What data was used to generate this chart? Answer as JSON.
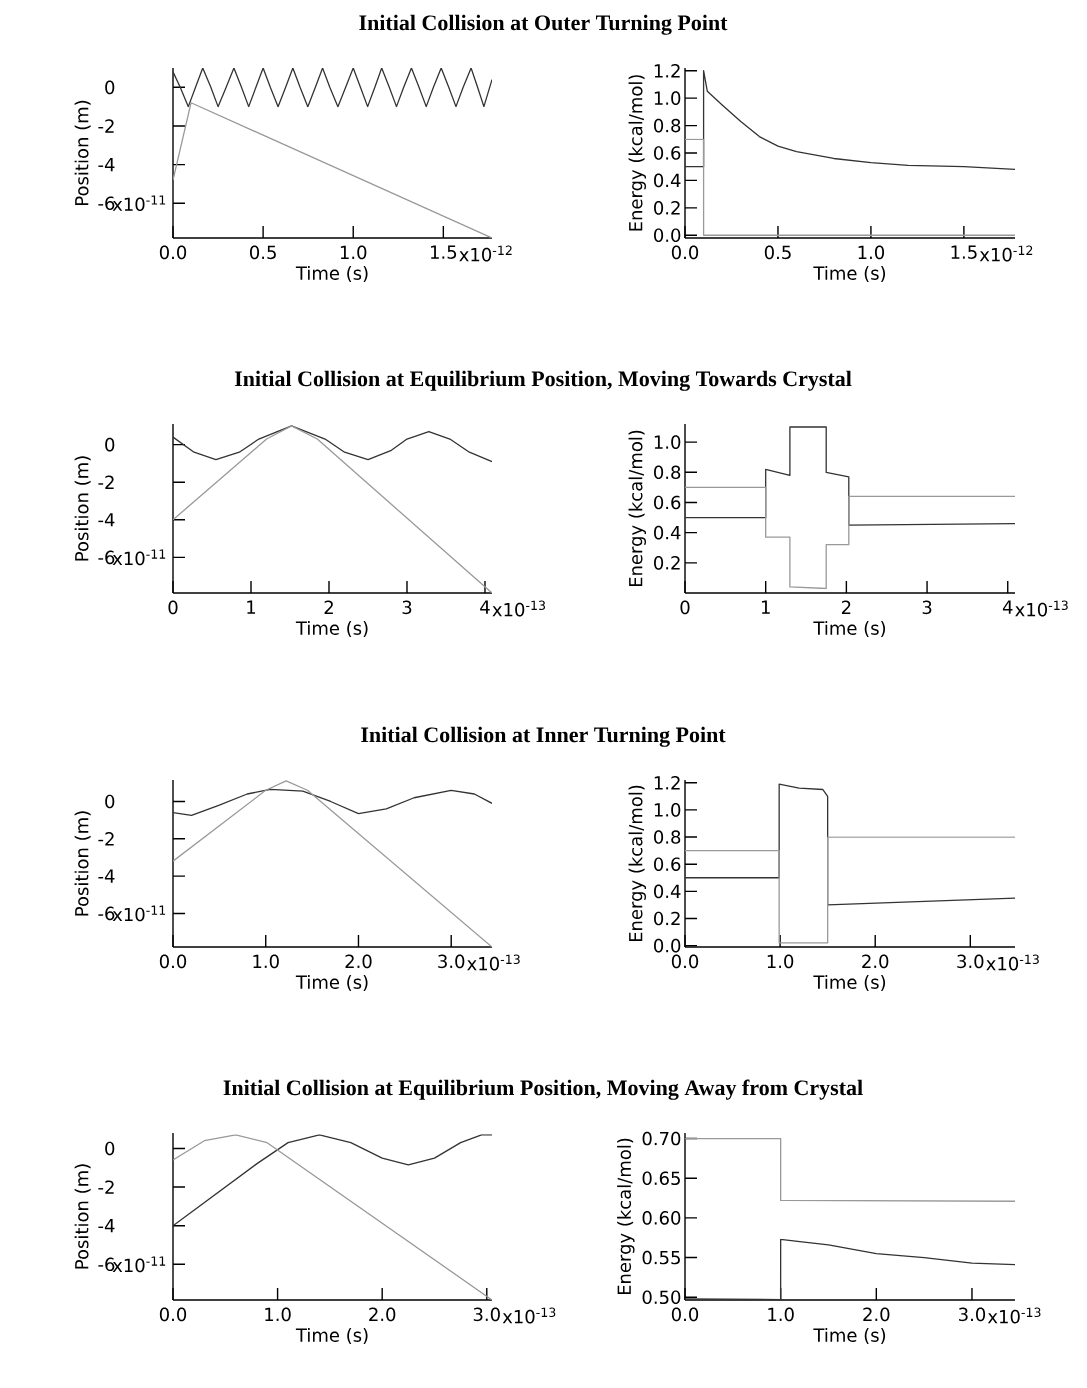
{
  "chart_data": [
    {
      "type": "line",
      "title": "Initial Collision at Outer Turning Point",
      "xlabel": "Time (s)",
      "ylabel": "Position (m)",
      "xlim": [
        0,
        1.77
      ],
      "ylim": [
        -7.8,
        1.0
      ],
      "annotations": [
        "x10$^{-12}$",
        "x10$^{-11}$"
      ],
      "xticks": [
        {
          "value": 0,
          "label": "0.0"
        },
        0.5,
        {
          "value": 1,
          "label": "1.0"
        },
        1.5
      ],
      "yticks": [
        0,
        -2,
        -4,
        -6
      ],
      "series": [
        {
          "color": "#333333",
          "x": [
            0,
            0.04,
            0.085,
            0.125,
            0.165,
            0.21,
            0.25,
            0.295,
            0.338,
            0.38,
            0.42,
            0.46,
            0.5,
            0.54,
            0.583,
            0.625,
            0.665,
            0.705,
            0.748,
            0.79,
            0.83,
            0.87,
            0.915,
            0.958,
            1.0,
            1.04,
            1.08,
            1.12,
            1.158,
            1.2,
            1.24,
            1.28,
            1.323,
            1.365,
            1.405,
            1.445,
            1.488,
            1.53,
            1.57,
            1.61,
            1.654,
            1.69,
            1.725,
            1.77
          ],
          "values": [
            0.8,
            0,
            -1.0,
            0,
            1.0,
            0,
            -1.0,
            0,
            1.0,
            0,
            -1.0,
            0,
            1.0,
            0,
            -1.0,
            0,
            1.0,
            0,
            -1.0,
            0,
            1.0,
            0,
            -1.0,
            0,
            1.0,
            0,
            -1.0,
            0,
            1.0,
            0,
            -1.0,
            0,
            1.0,
            0,
            -1.0,
            0,
            1.0,
            0,
            -1.0,
            0,
            1.0,
            0,
            -1.0,
            0.4
          ]
        },
        {
          "color": "#999999",
          "x": [
            0,
            0.1,
            1.77
          ],
          "values": [
            -4.8,
            -0.8,
            -7.8
          ]
        }
      ]
    },
    {
      "type": "line",
      "xlabel": "Time (s)",
      "ylabel": "Energy (kcal/mol)",
      "xlim": [
        0,
        1.775
      ],
      "ylim": [
        -0.02,
        1.22
      ],
      "annotations": [
        "x10$^{-12}$"
      ],
      "xticks": [
        {
          "value": 0,
          "label": "0.0"
        },
        0.5,
        {
          "value": 1,
          "label": "1.0"
        },
        1.5
      ],
      "yticks": [
        {
          "value": 0,
          "label": "0.0"
        },
        0.2,
        0.4,
        0.6,
        0.8,
        {
          "value": 1.0,
          "label": "1.0"
        },
        1.2
      ],
      "series": [
        {
          "color": "#333333",
          "x": [
            0,
            0.1,
            0.1,
            0.12,
            0.2,
            0.3,
            0.4,
            0.5,
            0.6,
            0.8,
            1.0,
            1.2,
            1.5,
            1.775
          ],
          "values": [
            0.5,
            0.5,
            1.2,
            1.05,
            0.95,
            0.83,
            0.72,
            0.65,
            0.61,
            0.56,
            0.53,
            0.51,
            0.5,
            0.48
          ]
        },
        {
          "color": "#999999",
          "x": [
            0,
            0.1,
            0.1,
            1.775
          ],
          "values": [
            0.7,
            0.7,
            0.0,
            0.0
          ]
        }
      ]
    },
    {
      "type": "line",
      "title": "Initial Collision at Equilibrium Position, Moving Towards Crystal",
      "xlabel": "Time (s)",
      "ylabel": "Position (m)",
      "xlim": [
        0,
        4.09
      ],
      "ylim": [
        -7.9,
        1.1
      ],
      "annotations": [
        "x10$^{-13}$",
        "x10$^{-11}$"
      ],
      "xticks": [
        0,
        1,
        2,
        3,
        4
      ],
      "yticks": [
        0,
        -2,
        -4,
        -6
      ],
      "series": [
        {
          "color": "#333333",
          "x": [
            0,
            0.27,
            0.55,
            0.85,
            1.1,
            1.52,
            1.95,
            2.2,
            2.5,
            2.8,
            3.0,
            3.28,
            3.55,
            3.8,
            4.09
          ],
          "values": [
            0.4,
            -0.4,
            -0.8,
            -0.4,
            0.3,
            1.0,
            0.3,
            -0.4,
            -0.8,
            -0.3,
            0.3,
            0.7,
            0.3,
            -0.4,
            -0.9
          ]
        },
        {
          "color": "#999999",
          "x": [
            0,
            1.2,
            1.52,
            1.85,
            4.09
          ],
          "values": [
            -4.0,
            0.3,
            1.0,
            0.3,
            -7.9
          ]
        }
      ]
    },
    {
      "type": "line",
      "xlabel": "Time (s)",
      "ylabel": "Energy (kcal/mol)",
      "xlim": [
        0,
        4.09
      ],
      "ylim": [
        0,
        1.12
      ],
      "annotations": [
        "x10$^{-13}$"
      ],
      "xticks": [
        0,
        1,
        2,
        3,
        4
      ],
      "yticks": [
        0.2,
        0.4,
        0.6,
        0.8,
        {
          "value": 1.0,
          "label": "1.0"
        }
      ],
      "series": [
        {
          "color": "#333333",
          "x": [
            0,
            1.0,
            1.0,
            1.3,
            1.3,
            1.75,
            1.75,
            2.03,
            2.03,
            4.09
          ],
          "values": [
            0.5,
            0.5,
            0.82,
            0.78,
            1.1,
            1.1,
            0.8,
            0.77,
            0.45,
            0.46
          ]
        },
        {
          "color": "#999999",
          "x": [
            0,
            1.0,
            1.0,
            1.3,
            1.3,
            1.75,
            1.75,
            2.03,
            2.03,
            4.09
          ],
          "values": [
            0.7,
            0.7,
            0.37,
            0.37,
            0.04,
            0.03,
            0.32,
            0.32,
            0.64,
            0.64
          ]
        }
      ]
    },
    {
      "type": "line",
      "title": "Initial Collision at Inner Turning Point",
      "xlabel": "Time (s)",
      "ylabel": "Position (m)",
      "xlim": [
        0,
        3.44
      ],
      "ylim": [
        -7.8,
        1.15
      ],
      "annotations": [
        "x10$^{-13}$",
        "x10$^{-11}$"
      ],
      "xticks": [
        {
          "value": 0,
          "label": "0.0"
        },
        {
          "value": 1,
          "label": "1.0"
        },
        {
          "value": 2,
          "label": "2.0"
        },
        {
          "value": 3,
          "label": "3.0"
        }
      ],
      "yticks": [
        0,
        -2,
        -4,
        -6
      ],
      "series": [
        {
          "color": "#333333",
          "x": [
            0,
            0.2,
            0.5,
            0.8,
            1.05,
            1.4,
            1.7,
            2.0,
            2.3,
            2.6,
            3.0,
            3.25,
            3.44
          ],
          "values": [
            -0.6,
            -0.75,
            -0.2,
            0.4,
            0.65,
            0.55,
            0.0,
            -0.65,
            -0.4,
            0.2,
            0.6,
            0.4,
            -0.1
          ]
        },
        {
          "color": "#999999",
          "x": [
            0,
            1.0,
            1.22,
            1.45,
            3.44
          ],
          "values": [
            -3.2,
            0.6,
            1.1,
            0.6,
            -7.8
          ]
        }
      ]
    },
    {
      "type": "line",
      "xlabel": "Time (s)",
      "ylabel": "Energy (kcal/mol)",
      "xlim": [
        0,
        3.47
      ],
      "ylim": [
        -0.01,
        1.22
      ],
      "annotations": [
        "x10$^{-13}$"
      ],
      "xticks": [
        {
          "value": 0,
          "label": "0.0"
        },
        {
          "value": 1,
          "label": "1.0"
        },
        {
          "value": 2,
          "label": "2.0"
        },
        {
          "value": 3,
          "label": "3.0"
        }
      ],
      "yticks": [
        {
          "value": 0,
          "label": "0.0"
        },
        0.2,
        0.4,
        0.6,
        0.8,
        {
          "value": 1.0,
          "label": "1.0"
        },
        1.2
      ],
      "series": [
        {
          "color": "#333333",
          "x": [
            0,
            0.99,
            0.99,
            1.2,
            1.45,
            1.5,
            1.5,
            3.47
          ],
          "values": [
            0.5,
            0.5,
            1.19,
            1.16,
            1.15,
            1.1,
            0.3,
            0.35
          ]
        },
        {
          "color": "#999999",
          "x": [
            0,
            0.99,
            0.99,
            1.5,
            1.5,
            3.47
          ],
          "values": [
            0.7,
            0.7,
            0.02,
            0.02,
            0.8,
            0.8
          ]
        }
      ]
    },
    {
      "type": "line",
      "title": "Initial Collision at Equilibrium Position, Moving Away from Crystal",
      "xlabel": "Time (s)",
      "ylabel": "Position (m)",
      "xlim": [
        0,
        3.05
      ],
      "ylim": [
        -7.85,
        0.8
      ],
      "annotations": [
        "x10$^{-13}$",
        "x10$^{-11}$"
      ],
      "xticks": [
        {
          "value": 0,
          "label": "0.0"
        },
        {
          "value": 1,
          "label": "1.0"
        },
        {
          "value": 2,
          "label": "2.0"
        },
        {
          "value": 3,
          "label": "3.0"
        }
      ],
      "yticks": [
        0,
        -2,
        -4,
        -6
      ],
      "series": [
        {
          "color": "#333333",
          "x": [
            0,
            0.8,
            1.1,
            1.4,
            1.7,
            2.0,
            2.25,
            2.5,
            2.75,
            2.95,
            3.05
          ],
          "values": [
            -4.0,
            -0.8,
            0.3,
            0.7,
            0.3,
            -0.5,
            -0.85,
            -0.5,
            0.3,
            0.7,
            0.7
          ]
        },
        {
          "color": "#999999",
          "x": [
            0,
            0.3,
            0.6,
            0.9,
            3.05
          ],
          "values": [
            -0.6,
            0.4,
            0.7,
            0.3,
            -7.85
          ]
        }
      ]
    },
    {
      "type": "line",
      "xlabel": "Time (s)",
      "ylabel": "Energy (kcal/mol)",
      "xlim": [
        0,
        3.45
      ],
      "ylim": [
        0.4965,
        0.707
      ],
      "annotations": [
        "x10$^{-13}$"
      ],
      "xticks": [
        {
          "value": 0,
          "label": "0.0"
        },
        {
          "value": 1,
          "label": "1.0"
        },
        {
          "value": 2,
          "label": "2.0"
        },
        {
          "value": 3,
          "label": "3.0"
        }
      ],
      "yticks": [
        {
          "value": 0.5,
          "label": "0.50"
        },
        0.55,
        {
          "value": 0.6,
          "label": "0.60"
        },
        0.65,
        {
          "value": 0.7,
          "label": "0.70"
        }
      ],
      "series": [
        {
          "color": "#333333",
          "x": [
            0,
            1.0,
            1.0,
            1.2,
            1.5,
            2.0,
            2.5,
            3.0,
            3.45
          ],
          "values": [
            0.498,
            0.497,
            0.573,
            0.57,
            0.566,
            0.555,
            0.55,
            0.543,
            0.541
          ]
        },
        {
          "color": "#999999",
          "x": [
            0,
            1.0,
            1.0,
            3.45
          ],
          "values": [
            0.7,
            0.7,
            0.622,
            0.621
          ]
        }
      ]
    }
  ]
}
